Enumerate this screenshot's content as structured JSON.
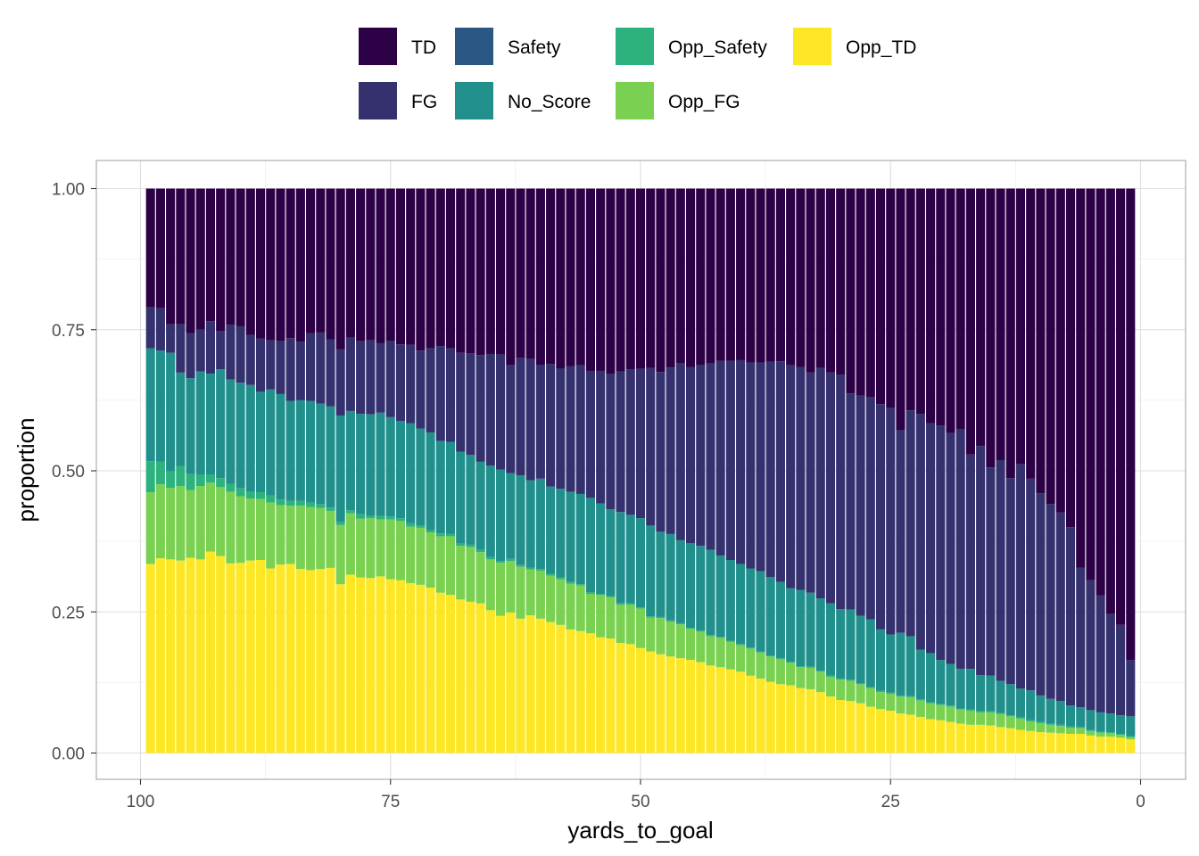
{
  "chart_data": {
    "type": "bar",
    "stacked": "fill",
    "title": "",
    "xlabel": "yards_to_goal",
    "ylabel": "proportion",
    "xlim": [
      100,
      0
    ],
    "x_reversed": true,
    "ylim": [
      0,
      1
    ],
    "x_ticks": [
      100,
      75,
      50,
      25,
      0
    ],
    "x_tick_labels": [
      "100",
      "75",
      "50",
      "25",
      "0"
    ],
    "y_ticks": [
      0,
      0.25,
      0.5,
      0.75,
      1
    ],
    "y_tick_labels": [
      "0.00",
      "0.25",
      "0.50",
      "0.75",
      "1.00"
    ],
    "grid": true,
    "legend_position": "top",
    "x": [
      99,
      98,
      97,
      96,
      95,
      94,
      93,
      92,
      91,
      90,
      89,
      88,
      87,
      86,
      85,
      84,
      83,
      82,
      81,
      80,
      79,
      78,
      77,
      76,
      75,
      74,
      73,
      72,
      71,
      70,
      69,
      68,
      67,
      66,
      65,
      64,
      63,
      62,
      61,
      60,
      59,
      58,
      57,
      56,
      55,
      54,
      53,
      52,
      51,
      50,
      49,
      48,
      47,
      46,
      45,
      44,
      43,
      42,
      41,
      40,
      39,
      38,
      37,
      36,
      35,
      34,
      33,
      32,
      31,
      30,
      29,
      28,
      27,
      26,
      25,
      24,
      23,
      22,
      21,
      20,
      19,
      18,
      17,
      16,
      15,
      14,
      13,
      12,
      11,
      10,
      9,
      8,
      7,
      6,
      5,
      4,
      3,
      2,
      1
    ],
    "series": [
      {
        "name": "Opp_TD",
        "color": "#fde725",
        "values": [
          0.335,
          0.345,
          0.343,
          0.341,
          0.346,
          0.343,
          0.357,
          0.349,
          0.336,
          0.337,
          0.341,
          0.342,
          0.327,
          0.334,
          0.335,
          0.326,
          0.324,
          0.326,
          0.328,
          0.299,
          0.316,
          0.311,
          0.31,
          0.313,
          0.308,
          0.306,
          0.301,
          0.298,
          0.293,
          0.284,
          0.28,
          0.272,
          0.268,
          0.265,
          0.253,
          0.243,
          0.249,
          0.238,
          0.244,
          0.238,
          0.232,
          0.227,
          0.219,
          0.216,
          0.212,
          0.205,
          0.203,
          0.195,
          0.193,
          0.186,
          0.18,
          0.175,
          0.171,
          0.168,
          0.165,
          0.161,
          0.155,
          0.152,
          0.148,
          0.144,
          0.137,
          0.132,
          0.126,
          0.122,
          0.12,
          0.115,
          0.113,
          0.108,
          0.1,
          0.094,
          0.092,
          0.088,
          0.082,
          0.078,
          0.075,
          0.07,
          0.068,
          0.064,
          0.06,
          0.058,
          0.055,
          0.052,
          0.05,
          0.05,
          0.049,
          0.046,
          0.044,
          0.041,
          0.039,
          0.037,
          0.036,
          0.035,
          0.034,
          0.034,
          0.031,
          0.029,
          0.029,
          0.027,
          0.024
        ]
      },
      {
        "name": "Opp_FG",
        "color": "#7ad151",
        "values": [
          0.127,
          0.131,
          0.127,
          0.132,
          0.12,
          0.13,
          0.122,
          0.122,
          0.127,
          0.118,
          0.11,
          0.108,
          0.117,
          0.105,
          0.103,
          0.112,
          0.112,
          0.108,
          0.101,
          0.105,
          0.109,
          0.104,
          0.106,
          0.101,
          0.106,
          0.105,
          0.1,
          0.101,
          0.098,
          0.1,
          0.104,
          0.095,
          0.097,
          0.091,
          0.09,
          0.094,
          0.091,
          0.092,
          0.081,
          0.085,
          0.082,
          0.081,
          0.081,
          0.081,
          0.07,
          0.075,
          0.073,
          0.068,
          0.07,
          0.07,
          0.06,
          0.064,
          0.062,
          0.06,
          0.055,
          0.054,
          0.052,
          0.052,
          0.049,
          0.047,
          0.048,
          0.046,
          0.045,
          0.044,
          0.04,
          0.037,
          0.038,
          0.036,
          0.035,
          0.036,
          0.036,
          0.034,
          0.033,
          0.03,
          0.03,
          0.03,
          0.031,
          0.029,
          0.028,
          0.027,
          0.027,
          0.025,
          0.025,
          0.022,
          0.023,
          0.023,
          0.021,
          0.02,
          0.017,
          0.016,
          0.014,
          0.013,
          0.011,
          0.01,
          0.008,
          0.007,
          0.006,
          0.005,
          0.004
        ]
      },
      {
        "name": "Opp_Safety",
        "color": "#2db27d",
        "values": [
          0.055,
          0.04,
          0.029,
          0.035,
          0.028,
          0.02,
          0.014,
          0.016,
          0.014,
          0.015,
          0.012,
          0.012,
          0.012,
          0.01,
          0.009,
          0.009,
          0.008,
          0.007,
          0.006,
          0.006,
          0.005,
          0.008,
          0.005,
          0.006,
          0.005,
          0.005,
          0.006,
          0.004,
          0.004,
          0.005,
          0.004,
          0.004,
          0.004,
          0.004,
          0.004,
          0.003,
          0.004,
          0.003,
          0.003,
          0.003,
          0.003,
          0.003,
          0.003,
          0.002,
          0.003,
          0.002,
          0.002,
          0.003,
          0.002,
          0.002,
          0.002,
          0.002,
          0.002,
          0.002,
          0.002,
          0.002,
          0.002,
          0.002,
          0.002,
          0.002,
          0.002,
          0.002,
          0.002,
          0.002,
          0.002,
          0.002,
          0.002,
          0.002,
          0.002,
          0.002,
          0.002,
          0.002,
          0.002,
          0.002,
          0.002,
          0.002,
          0.002,
          0.002,
          0.002,
          0.002,
          0.002,
          0.002,
          0.002,
          0.002,
          0.002,
          0.002,
          0.002,
          0.002,
          0.002,
          0.002,
          0.002,
          0.002,
          0.002,
          0.002,
          0.002,
          0.002,
          0.002,
          0.002,
          0.002
        ]
      },
      {
        "name": "No_Score",
        "color": "#21908c",
        "values": [
          0.2,
          0.197,
          0.21,
          0.166,
          0.17,
          0.183,
          0.179,
          0.193,
          0.185,
          0.186,
          0.189,
          0.178,
          0.188,
          0.187,
          0.177,
          0.178,
          0.18,
          0.178,
          0.179,
          0.188,
          0.176,
          0.178,
          0.179,
          0.183,
          0.176,
          0.172,
          0.177,
          0.172,
          0.173,
          0.164,
          0.163,
          0.163,
          0.159,
          0.156,
          0.162,
          0.162,
          0.152,
          0.159,
          0.155,
          0.16,
          0.155,
          0.157,
          0.16,
          0.16,
          0.167,
          0.16,
          0.154,
          0.161,
          0.157,
          0.158,
          0.161,
          0.151,
          0.153,
          0.147,
          0.15,
          0.15,
          0.151,
          0.144,
          0.143,
          0.142,
          0.14,
          0.142,
          0.139,
          0.135,
          0.13,
          0.135,
          0.131,
          0.128,
          0.128,
          0.123,
          0.124,
          0.119,
          0.12,
          0.109,
          0.103,
          0.111,
          0.106,
          0.088,
          0.087,
          0.078,
          0.074,
          0.07,
          0.072,
          0.064,
          0.063,
          0.057,
          0.055,
          0.051,
          0.053,
          0.047,
          0.044,
          0.042,
          0.037,
          0.035,
          0.035,
          0.034,
          0.033,
          0.033,
          0.035
        ]
      },
      {
        "name": "Safety",
        "color": "#2a5783",
        "values": [
          0.0,
          0.0,
          0.0,
          0.0,
          0.0,
          0.0,
          0.0,
          0.0,
          0.0,
          0.0,
          0.0,
          0.0,
          0.0,
          0.0,
          0.0,
          0.0,
          0.0,
          0.0,
          0.0,
          0.0,
          0.0,
          0.0,
          0.0,
          0.0,
          0.0,
          0.0,
          0.0,
          0.0,
          0.0,
          0.0,
          0.0,
          0.0,
          0.0,
          0.0,
          0.0,
          0.0,
          0.0,
          0.0,
          0.0,
          0.0,
          0.0,
          0.0,
          0.0,
          0.0,
          0.0,
          0.0,
          0.0,
          0.0,
          0.0,
          0.0,
          0.0,
          0.0,
          0.0,
          0.0,
          0.0,
          0.0,
          0.0,
          0.0,
          0.0,
          0.0,
          0.0,
          0.0,
          0.0,
          0.0,
          0.0,
          0.0,
          0.0,
          0.0,
          0.0,
          0.0,
          0.0,
          0.0,
          0.0,
          0.0,
          0.0,
          0.0,
          0.0,
          0.0,
          0.0,
          0.0,
          0.0,
          0.0,
          0.0,
          0.0,
          0.0,
          0.0,
          0.0,
          0.0,
          0.0,
          0.0,
          0.0,
          0.0,
          0.0,
          0.0,
          0.0,
          0.0,
          0.0,
          0.0,
          0.0
        ]
      },
      {
        "name": "FG",
        "color": "#35316f",
        "values": [
          0.073,
          0.075,
          0.051,
          0.086,
          0.08,
          0.074,
          0.093,
          0.068,
          0.097,
          0.1,
          0.089,
          0.094,
          0.087,
          0.094,
          0.111,
          0.104,
          0.12,
          0.126,
          0.119,
          0.117,
          0.13,
          0.129,
          0.131,
          0.123,
          0.135,
          0.136,
          0.139,
          0.138,
          0.149,
          0.168,
          0.166,
          0.175,
          0.18,
          0.189,
          0.198,
          0.204,
          0.192,
          0.208,
          0.215,
          0.202,
          0.217,
          0.213,
          0.222,
          0.228,
          0.225,
          0.235,
          0.239,
          0.249,
          0.258,
          0.265,
          0.279,
          0.283,
          0.295,
          0.313,
          0.312,
          0.321,
          0.33,
          0.345,
          0.353,
          0.361,
          0.365,
          0.37,
          0.381,
          0.391,
          0.395,
          0.395,
          0.39,
          0.408,
          0.409,
          0.415,
          0.383,
          0.39,
          0.393,
          0.399,
          0.401,
          0.359,
          0.4,
          0.418,
          0.407,
          0.415,
          0.409,
          0.424,
          0.38,
          0.406,
          0.369,
          0.391,
          0.365,
          0.398,
          0.375,
          0.358,
          0.345,
          0.334,
          0.316,
          0.247,
          0.23,
          0.207,
          0.176,
          0.16,
          0.1
        ]
      },
      {
        "name": "TD",
        "color": "#2d0145",
        "values": [
          0.21,
          0.212,
          0.24,
          0.24,
          0.256,
          0.25,
          0.235,
          0.252,
          0.241,
          0.244,
          0.259,
          0.266,
          0.269,
          0.27,
          0.265,
          0.271,
          0.256,
          0.255,
          0.267,
          0.285,
          0.264,
          0.27,
          0.269,
          0.274,
          0.27,
          0.276,
          0.277,
          0.287,
          0.283,
          0.279,
          0.283,
          0.291,
          0.292,
          0.295,
          0.293,
          0.294,
          0.312,
          0.3,
          0.302,
          0.312,
          0.311,
          0.319,
          0.315,
          0.313,
          0.323,
          0.323,
          0.329,
          0.324,
          0.32,
          0.319,
          0.318,
          0.325,
          0.317,
          0.31,
          0.316,
          0.312,
          0.31,
          0.305,
          0.305,
          0.304,
          0.308,
          0.308,
          0.307,
          0.306,
          0.313,
          0.316,
          0.326,
          0.318,
          0.326,
          0.33,
          0.363,
          0.367,
          0.37,
          0.382,
          0.389,
          0.428,
          0.393,
          0.399,
          0.416,
          0.42,
          0.433,
          0.427,
          0.471,
          0.456,
          0.494,
          0.481,
          0.513,
          0.488,
          0.514,
          0.54,
          0.559,
          0.574,
          0.6,
          0.672,
          0.694,
          0.721,
          0.754,
          0.773,
          0.835
        ]
      }
    ],
    "legend": [
      {
        "name": "TD",
        "color": "#2d0145"
      },
      {
        "name": "FG",
        "color": "#35316f"
      },
      {
        "name": "Safety",
        "color": "#2a5783"
      },
      {
        "name": "No_Score",
        "color": "#21908c"
      },
      {
        "name": "Opp_Safety",
        "color": "#2db27d"
      },
      {
        "name": "Opp_FG",
        "color": "#7ad151"
      },
      {
        "name": "Opp_TD",
        "color": "#fde725"
      }
    ]
  }
}
